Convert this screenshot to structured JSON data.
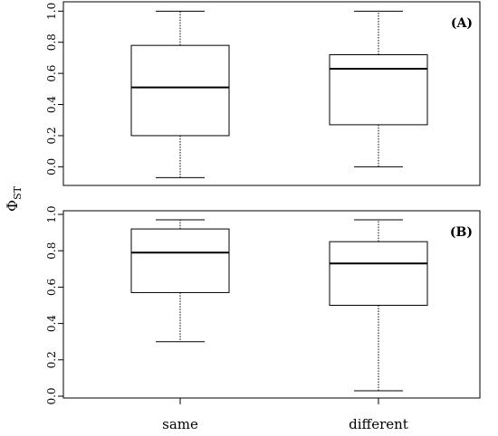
{
  "chart_data": {
    "type": "boxplot",
    "ylabel_main": "Φ",
    "ylabel_sub": "ST",
    "categories": [
      "same",
      "different"
    ],
    "panels": [
      {
        "label": "(A)",
        "ylim": [
          -0.12,
          1.06
        ],
        "yticks": [
          0.0,
          0.2,
          0.4,
          0.6,
          0.8,
          1.0
        ],
        "ytick_labels": [
          "0.0",
          "0.2",
          "0.4",
          "0.6",
          "0.8",
          "1.0"
        ],
        "boxes": [
          {
            "category": "same",
            "min": -0.07,
            "q1": 0.2,
            "median": 0.51,
            "q3": 0.78,
            "max": 1.0
          },
          {
            "category": "different",
            "min": 0.0,
            "q1": 0.27,
            "median": 0.63,
            "q3": 0.72,
            "max": 1.0
          }
        ]
      },
      {
        "label": "(B)",
        "ylim": [
          -0.01,
          1.02
        ],
        "yticks": [
          0.0,
          0.2,
          0.4,
          0.6,
          0.8,
          1.0
        ],
        "ytick_labels": [
          "0.0",
          "0.2",
          "0.4",
          "0.6",
          "0.8",
          "1.0"
        ],
        "boxes": [
          {
            "category": "same",
            "min": 0.3,
            "q1": 0.57,
            "median": 0.79,
            "q3": 0.92,
            "max": 0.97
          },
          {
            "category": "different",
            "min": 0.03,
            "q1": 0.5,
            "median": 0.73,
            "q3": 0.85,
            "max": 0.97
          }
        ]
      }
    ]
  }
}
